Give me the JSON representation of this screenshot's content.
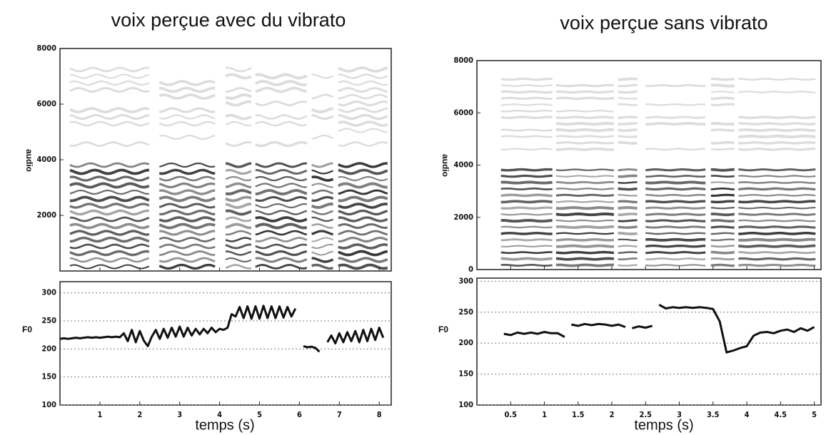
{
  "chart_data": [
    {
      "type": "line",
      "title": "voix perçue avec du vibrato",
      "x_label": "temps (s)",
      "y_label": "F0",
      "color": "#111111",
      "grid": true,
      "spectrogram": {
        "y_label": "audio",
        "ylim": [
          0,
          8000
        ],
        "yticks": [
          2000,
          4000,
          6000,
          8000
        ]
      },
      "xlim": [
        0,
        8.3
      ],
      "xticks": [
        1,
        2,
        3,
        4,
        5,
        6,
        7,
        8
      ],
      "ylim": [
        100,
        320
      ],
      "yticks": [
        100,
        150,
        200,
        250,
        300
      ],
      "x": [
        0.0,
        0.1,
        0.2,
        0.3,
        0.4,
        0.5,
        0.6,
        0.7,
        0.8,
        0.9,
        1.0,
        1.1,
        1.2,
        1.3,
        1.4,
        1.5,
        1.6,
        1.7,
        1.8,
        1.9,
        2.0,
        2.1,
        2.2,
        2.3,
        2.4,
        2.5,
        2.6,
        2.7,
        2.8,
        2.9,
        3.0,
        3.1,
        3.2,
        3.3,
        3.4,
        3.5,
        3.6,
        3.7,
        3.8,
        3.9,
        4.0,
        4.1,
        4.2,
        4.3,
        4.4,
        4.5,
        4.6,
        4.7,
        4.8,
        4.9,
        5.0,
        5.1,
        5.2,
        5.3,
        5.4,
        5.5,
        5.6,
        5.7,
        5.8,
        5.9,
        6.0,
        6.1,
        6.2,
        6.3,
        6.4,
        6.5,
        6.6,
        6.7,
        6.8,
        6.9,
        7.0,
        7.1,
        7.2,
        7.3,
        7.4,
        7.5,
        7.6,
        7.7,
        7.8,
        7.9,
        8.0,
        8.1
      ],
      "values": [
        218,
        219,
        218,
        219,
        220,
        219,
        220,
        221,
        220,
        221,
        220,
        221,
        222,
        221,
        222,
        221,
        228,
        214,
        234,
        212,
        232,
        215,
        205,
        222,
        234,
        218,
        236,
        220,
        238,
        222,
        240,
        222,
        238,
        224,
        236,
        226,
        236,
        228,
        238,
        230,
        236,
        234,
        238,
        262,
        258,
        275,
        255,
        276,
        254,
        276,
        254,
        277,
        255,
        276,
        255,
        276,
        256,
        275,
        258,
        272,
        null,
        205,
        203,
        204,
        202,
        195,
        null,
        212,
        224,
        210,
        228,
        212,
        230,
        214,
        232,
        212,
        234,
        214,
        236,
        216,
        238,
        220
      ]
    },
    {
      "type": "line",
      "title": "voix perçue sans vibrato",
      "x_label": "temps (s)",
      "y_label": "F0",
      "color": "#111111",
      "grid": true,
      "spectrogram": {
        "y_label": "audio",
        "ylim": [
          0,
          8000
        ],
        "yticks": [
          0,
          2000,
          4000,
          6000,
          8000
        ]
      },
      "xlim": [
        0,
        5.1
      ],
      "xticks": [
        0.5,
        1,
        1.5,
        2,
        2.5,
        3,
        3.5,
        4,
        4.5,
        5
      ],
      "ylim": [
        100,
        305
      ],
      "yticks": [
        100,
        150,
        200,
        250,
        300
      ],
      "x": [
        0.4,
        0.5,
        0.6,
        0.7,
        0.8,
        0.9,
        1.0,
        1.1,
        1.2,
        1.3,
        1.35,
        1.4,
        1.5,
        1.6,
        1.7,
        1.8,
        1.9,
        2.0,
        2.1,
        2.2,
        2.25,
        2.3,
        2.4,
        2.5,
        2.6,
        2.65,
        2.7,
        2.8,
        2.9,
        3.0,
        3.1,
        3.2,
        3.3,
        3.4,
        3.5,
        3.6,
        3.7,
        3.8,
        3.9,
        4.0,
        4.1,
        4.2,
        4.3,
        4.4,
        4.5,
        4.6,
        4.7,
        4.8,
        4.9,
        5.0
      ],
      "values": [
        215,
        213,
        217,
        215,
        217,
        215,
        218,
        216,
        216,
        210,
        null,
        230,
        228,
        231,
        229,
        231,
        230,
        228,
        230,
        226,
        null,
        224,
        227,
        225,
        228,
        null,
        262,
        256,
        258,
        257,
        258,
        257,
        258,
        257,
        255,
        235,
        185,
        188,
        192,
        195,
        212,
        217,
        218,
        216,
        220,
        222,
        218,
        224,
        220,
        226
      ]
    }
  ]
}
